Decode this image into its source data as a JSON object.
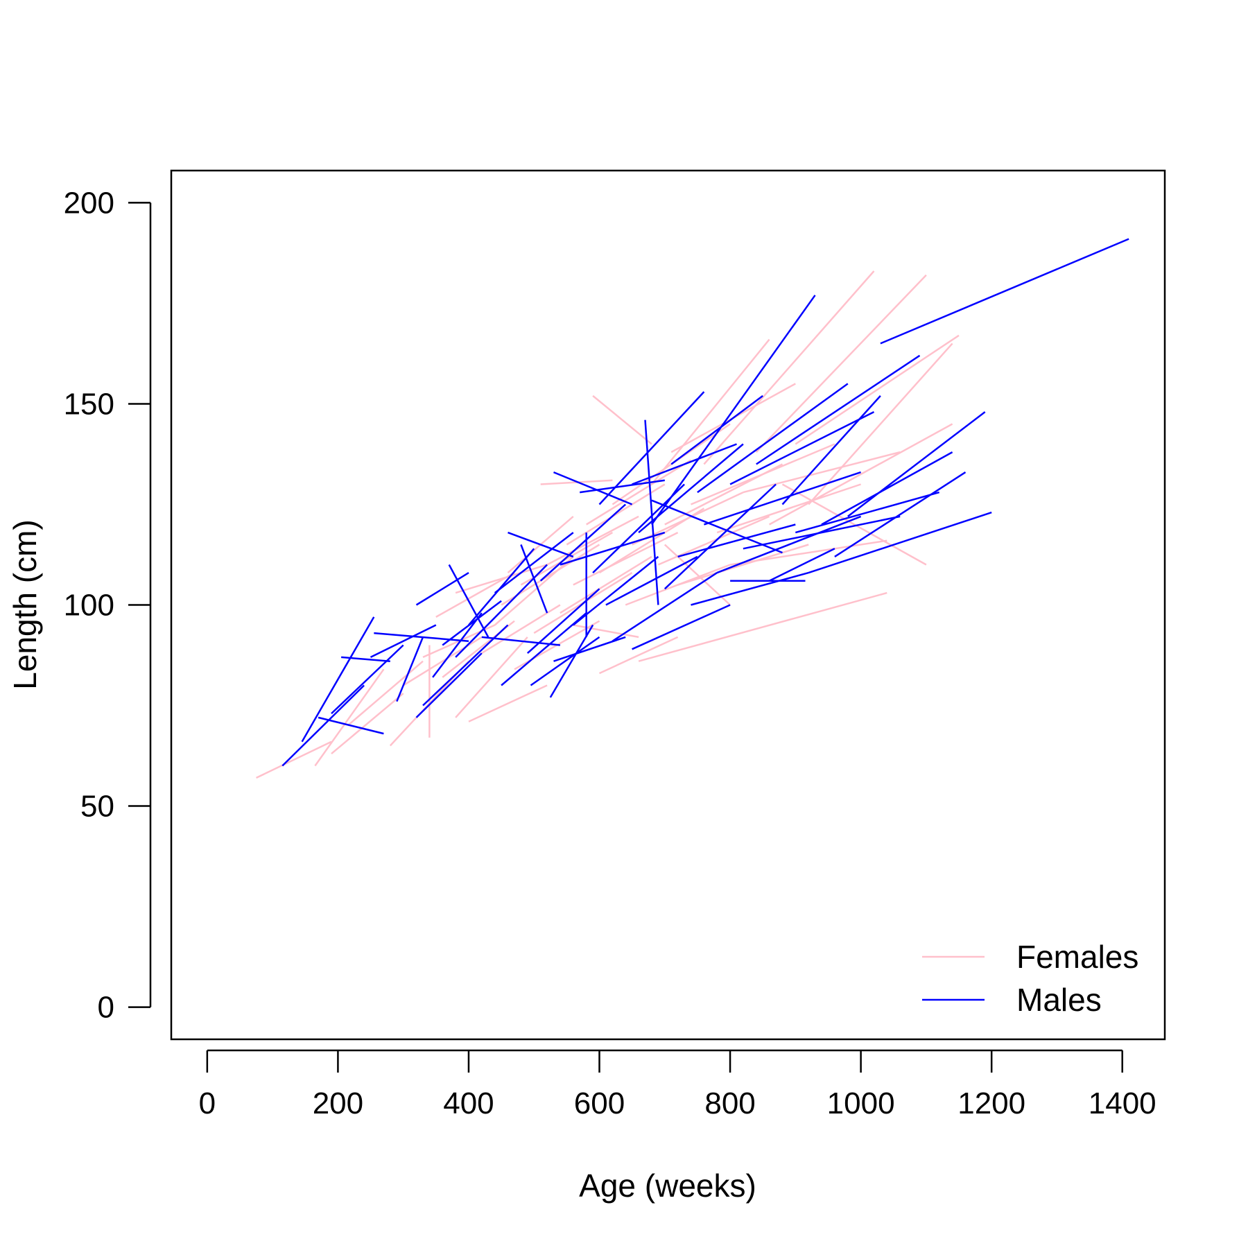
{
  "chart_data": {
    "type": "line",
    "title": "",
    "xlabel": "Age (weeks)",
    "ylabel": "Length (cm)",
    "xlim": [
      -55,
      1465
    ],
    "ylim": [
      -8,
      208
    ],
    "xticks": [
      0,
      200,
      400,
      600,
      800,
      1000,
      1200,
      1400
    ],
    "yticks": [
      0,
      50,
      100,
      150,
      200
    ],
    "grid": false,
    "legend_position": "bottom-right",
    "series": [
      {
        "name": "Females",
        "color": "#FFC0CB",
        "segments": [
          [
            [
              75,
              57
            ],
            [
              190,
              66
            ]
          ],
          [
            [
              165,
              60
            ],
            [
              270,
              84
            ]
          ],
          [
            [
              190,
              63
            ],
            [
              300,
              78
            ]
          ],
          [
            [
              215,
              70
            ],
            [
              330,
              86
            ]
          ],
          [
            [
              280,
              65
            ],
            [
              400,
              86
            ]
          ],
          [
            [
              300,
              80
            ],
            [
              420,
              92
            ]
          ],
          [
            [
              330,
              87
            ],
            [
              440,
              95
            ]
          ],
          [
            [
              340,
              67
            ],
            [
              340,
              90
            ]
          ],
          [
            [
              360,
              82
            ],
            [
              470,
              96
            ]
          ],
          [
            [
              380,
              72
            ],
            [
              490,
              92
            ]
          ],
          [
            [
              400,
              71
            ],
            [
              520,
              80
            ]
          ],
          [
            [
              380,
              103
            ],
            [
              520,
              110
            ]
          ],
          [
            [
              420,
              88
            ],
            [
              540,
              100
            ]
          ],
          [
            [
              440,
              95
            ],
            [
              560,
              112
            ]
          ],
          [
            [
              450,
              100
            ],
            [
              600,
              115
            ]
          ],
          [
            [
              470,
              84
            ],
            [
              600,
              96
            ]
          ],
          [
            [
              480,
              105
            ],
            [
              620,
              118
            ]
          ],
          [
            [
              500,
              93
            ],
            [
              650,
              108
            ]
          ],
          [
            [
              510,
              130
            ],
            [
              620,
              131
            ]
          ],
          [
            [
              520,
              110
            ],
            [
              660,
              122
            ]
          ],
          [
            [
              540,
              98
            ],
            [
              680,
              112
            ]
          ],
          [
            [
              550,
              115
            ],
            [
              700,
              130
            ]
          ],
          [
            [
              560,
              105
            ],
            [
              720,
              118
            ]
          ],
          [
            [
              580,
              120
            ],
            [
              740,
              136
            ]
          ],
          [
            [
              590,
              152
            ],
            [
              680,
              140
            ]
          ],
          [
            [
              600,
              83
            ],
            [
              720,
              92
            ]
          ],
          [
            [
              600,
              108
            ],
            [
              760,
              124
            ]
          ],
          [
            [
              620,
              125
            ],
            [
              800,
              145
            ]
          ],
          [
            [
              640,
              100
            ],
            [
              800,
              110
            ]
          ],
          [
            [
              650,
              115
            ],
            [
              820,
              128
            ]
          ],
          [
            [
              660,
              86
            ],
            [
              1040,
              103
            ]
          ],
          [
            [
              680,
              130
            ],
            [
              860,
              166
            ]
          ],
          [
            [
              690,
              110
            ],
            [
              860,
              122
            ]
          ],
          [
            [
              700,
              120
            ],
            [
              880,
              135
            ]
          ],
          [
            [
              710,
              138
            ],
            [
              900,
              155
            ]
          ],
          [
            [
              720,
              105
            ],
            [
              920,
              115
            ]
          ],
          [
            [
              740,
              125
            ],
            [
              960,
              140
            ]
          ],
          [
            [
              760,
              135
            ],
            [
              1020,
              183
            ]
          ],
          [
            [
              780,
              118
            ],
            [
              1000,
              130
            ]
          ],
          [
            [
              800,
              110
            ],
            [
              1040,
              116
            ]
          ],
          [
            [
              820,
              128
            ],
            [
              1060,
              138
            ]
          ],
          [
            [
              840,
              138
            ],
            [
              1100,
              182
            ]
          ],
          [
            [
              860,
              120
            ],
            [
              1140,
              145
            ]
          ],
          [
            [
              880,
              130
            ],
            [
              1100,
              110
            ]
          ],
          [
            [
              900,
              140
            ],
            [
              1150,
              167
            ]
          ],
          [
            [
              920,
              125
            ],
            [
              1140,
              165
            ]
          ],
          [
            [
              700,
              115
            ],
            [
              800,
              100
            ]
          ],
          [
            [
              560,
              95
            ],
            [
              660,
              92
            ]
          ],
          [
            [
              460,
              108
            ],
            [
              560,
              122
            ]
          ],
          [
            [
              350,
              97
            ],
            [
              470,
              108
            ]
          ]
        ]
      },
      {
        "name": "Males",
        "color": "#0000FF",
        "segments": [
          [
            [
              115,
              60
            ],
            [
              240,
              80
            ]
          ],
          [
            [
              145,
              66
            ],
            [
              255,
              97
            ]
          ],
          [
            [
              170,
              72
            ],
            [
              270,
              68
            ]
          ],
          [
            [
              190,
              73
            ],
            [
              300,
              90
            ]
          ],
          [
            [
              205,
              87
            ],
            [
              280,
              86
            ]
          ],
          [
            [
              250,
              87
            ],
            [
              350,
              95
            ]
          ],
          [
            [
              255,
              93
            ],
            [
              400,
              91
            ]
          ],
          [
            [
              290,
              76
            ],
            [
              330,
              92
            ]
          ],
          [
            [
              320,
              72
            ],
            [
              420,
              88
            ]
          ],
          [
            [
              320,
              100
            ],
            [
              400,
              108
            ]
          ],
          [
            [
              330,
              75
            ],
            [
              460,
              95
            ]
          ],
          [
            [
              345,
              82
            ],
            [
              420,
              98
            ]
          ],
          [
            [
              360,
              90
            ],
            [
              450,
              101
            ]
          ],
          [
            [
              370,
              110
            ],
            [
              430,
              92
            ]
          ],
          [
            [
              380,
              87
            ],
            [
              520,
              110
            ]
          ],
          [
            [
              400,
              95
            ],
            [
              500,
              114
            ]
          ],
          [
            [
              420,
              92
            ],
            [
              540,
              90
            ]
          ],
          [
            [
              440,
              103
            ],
            [
              560,
              118
            ]
          ],
          [
            [
              450,
              80
            ],
            [
              580,
              98
            ]
          ],
          [
            [
              460,
              118
            ],
            [
              560,
              112
            ]
          ],
          [
            [
              480,
              115
            ],
            [
              520,
              98
            ]
          ],
          [
            [
              490,
              88
            ],
            [
              600,
              104
            ]
          ],
          [
            [
              495,
              80
            ],
            [
              600,
              92
            ]
          ],
          [
            [
              510,
              106
            ],
            [
              640,
              125
            ]
          ],
          [
            [
              525,
              77
            ],
            [
              590,
              95
            ]
          ],
          [
            [
              530,
              133
            ],
            [
              650,
              125
            ]
          ],
          [
            [
              530,
              86
            ],
            [
              640,
              92
            ]
          ],
          [
            [
              540,
              110
            ],
            [
              700,
              118
            ]
          ],
          [
            [
              560,
              95
            ],
            [
              690,
              112
            ]
          ],
          [
            [
              570,
              128
            ],
            [
              700,
              131
            ]
          ],
          [
            [
              580,
              92
            ],
            [
              580,
              118
            ]
          ],
          [
            [
              590,
              108
            ],
            [
              730,
              130
            ]
          ],
          [
            [
              600,
              125
            ],
            [
              760,
              153
            ]
          ],
          [
            [
              610,
              100
            ],
            [
              750,
              112
            ]
          ],
          [
            [
              620,
              91
            ],
            [
              780,
              108
            ]
          ],
          [
            [
              650,
              130
            ],
            [
              810,
              140
            ]
          ],
          [
            [
              650,
              89
            ],
            [
              800,
              100
            ]
          ],
          [
            [
              660,
              118
            ],
            [
              820,
              140
            ]
          ],
          [
            [
              670,
              146
            ],
            [
              690,
              100
            ]
          ],
          [
            [
              680,
              126
            ],
            [
              880,
              113
            ]
          ],
          [
            [
              680,
              120
            ],
            [
              930,
              177
            ]
          ],
          [
            [
              700,
              104
            ],
            [
              870,
              130
            ]
          ],
          [
            [
              710,
              135
            ],
            [
              850,
              152
            ]
          ],
          [
            [
              720,
              112
            ],
            [
              900,
              120
            ]
          ],
          [
            [
              740,
              100
            ],
            [
              920,
              108
            ]
          ],
          [
            [
              750,
              128
            ],
            [
              980,
              155
            ]
          ],
          [
            [
              760,
              120
            ],
            [
              1000,
              133
            ]
          ],
          [
            [
              780,
              108
            ],
            [
              1000,
              122
            ]
          ],
          [
            [
              800,
              130
            ],
            [
              1020,
              148
            ]
          ],
          [
            [
              820,
              114
            ],
            [
              1060,
              122
            ]
          ],
          [
            [
              840,
              135
            ],
            [
              1090,
              162
            ]
          ],
          [
            [
              860,
              106
            ],
            [
              960,
              114
            ]
          ],
          [
            [
              880,
              125
            ],
            [
              1030,
              152
            ]
          ],
          [
            [
              900,
              118
            ],
            [
              1120,
              128
            ]
          ],
          [
            [
              920,
              108
            ],
            [
              1200,
              123
            ]
          ],
          [
            [
              940,
              120
            ],
            [
              1140,
              138
            ]
          ],
          [
            [
              960,
              112
            ],
            [
              1160,
              133
            ]
          ],
          [
            [
              980,
              122
            ],
            [
              1190,
              148
            ]
          ],
          [
            [
              1030,
              165
            ],
            [
              1410,
              191
            ]
          ],
          [
            [
              800,
              106
            ],
            [
              915,
              106
            ]
          ]
        ]
      }
    ]
  }
}
